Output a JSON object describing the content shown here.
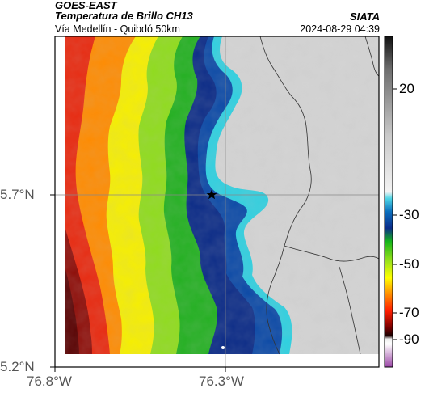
{
  "header": {
    "satellite": "GOES-EAST",
    "product": "Temperatura de Brillo CH13",
    "region": "Vía Medellín - Quibdó 50km",
    "agency": "SIATA",
    "datetime": "2024-08-29 04:39"
  },
  "axes": {
    "x_ticks": [
      "76.8°W",
      "76.3°W"
    ],
    "y_ticks": [
      "5.7°N",
      "5.2°N"
    ]
  },
  "colorbar": {
    "ticks": [
      "20",
      "-30",
      "-50",
      "-70",
      "-90"
    ],
    "colors": [
      "#1a1a1a",
      "#7a7a7a",
      "#c8c8c8",
      "#ffffff",
      "#5fd3e6",
      "#0a6fb8",
      "#0a2a8c",
      "#14b814",
      "#7ee01a",
      "#ffff00",
      "#ff8c00",
      "#ff1a00",
      "#8a0000",
      "#1a0000",
      "#ffffff",
      "#a04aa8"
    ]
  },
  "map": {
    "marker": "star",
    "colors": {
      "cloud_free": "#d4d4d4",
      "cold_top_blue": "#0b49a6",
      "cyan_edge": "#2fd0e0",
      "green": "#24b323",
      "yellow": "#f6ef00",
      "orange": "#ff8b00",
      "red": "#e8290f",
      "dark_red": "#8e0d08"
    }
  }
}
